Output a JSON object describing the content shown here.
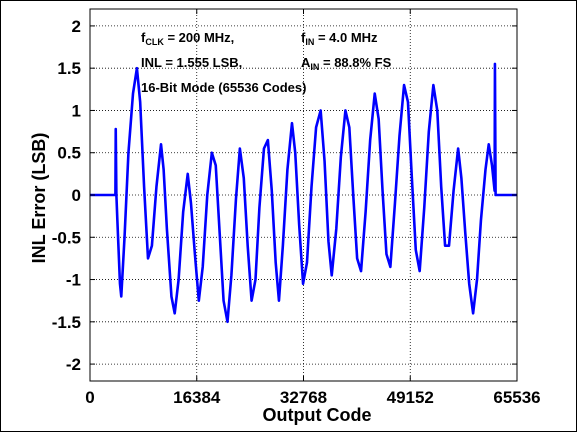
{
  "chart_data": {
    "type": "line",
    "xlabel": "Output Code",
    "ylabel": "INL Error (LSB)",
    "xlim": [
      0,
      65536
    ],
    "ylim": [
      -2.2,
      2.2
    ],
    "x_ticks": [
      0,
      16384,
      32768,
      49152,
      65536
    ],
    "x_tick_labels": [
      "0",
      "16384",
      "32768",
      "49152",
      "65536"
    ],
    "y_ticks": [
      2,
      1.5,
      1,
      0.5,
      0,
      -0.5,
      -1,
      -1.5,
      -2
    ],
    "y_tick_labels": [
      "2",
      "1.5",
      "1",
      "0.5",
      "0",
      "-0.5",
      "-1",
      "-1.5",
      "-2"
    ],
    "grid": true,
    "series_color": "#0000ff",
    "annotations": {
      "fclk": {
        "main": "f",
        "sub": "CLK",
        "rest": " = 200 MHz,"
      },
      "fin": {
        "main": "f",
        "sub": "IN",
        "rest": " = 4.0 MHz"
      },
      "inl": "INL = 1.555 LSB,",
      "ain": {
        "main": "A",
        "sub": "IN",
        "rest": " = 88.8% FS"
      },
      "mode": "16-Bit Mode (65536 Codes)"
    },
    "series": [
      {
        "points": [
          [
            0,
            0
          ],
          [
            3900,
            0
          ],
          [
            3950,
            0.78
          ],
          [
            4050,
            0
          ],
          [
            4200,
            -0.3
          ],
          [
            4600,
            -1.05
          ],
          [
            4800,
            -1.2
          ],
          [
            5300,
            -0.5
          ],
          [
            5900,
            0.5
          ],
          [
            6600,
            1.2
          ],
          [
            7200,
            1.5
          ],
          [
            7700,
            1.1
          ],
          [
            8300,
            0.1
          ],
          [
            8900,
            -0.75
          ],
          [
            9500,
            -0.6
          ],
          [
            10200,
            0.1
          ],
          [
            10900,
            0.6
          ],
          [
            11300,
            0.3
          ],
          [
            11800,
            -0.4
          ],
          [
            12500,
            -1.2
          ],
          [
            13000,
            -1.4
          ],
          [
            13600,
            -1.0
          ],
          [
            14300,
            -0.2
          ],
          [
            15000,
            0.25
          ],
          [
            15500,
            -0.1
          ],
          [
            16100,
            -0.7
          ],
          [
            16700,
            -1.25
          ],
          [
            17300,
            -0.85
          ],
          [
            18000,
            0.0
          ],
          [
            18700,
            0.5
          ],
          [
            19300,
            0.35
          ],
          [
            19900,
            -0.45
          ],
          [
            20500,
            -1.25
          ],
          [
            21100,
            -1.5
          ],
          [
            21700,
            -0.95
          ],
          [
            22400,
            -0.05
          ],
          [
            23000,
            0.55
          ],
          [
            23600,
            0.2
          ],
          [
            24200,
            -0.6
          ],
          [
            24800,
            -1.25
          ],
          [
            25400,
            -1.0
          ],
          [
            26000,
            -0.15
          ],
          [
            26700,
            0.55
          ],
          [
            27300,
            0.65
          ],
          [
            27900,
            0.05
          ],
          [
            28500,
            -0.8
          ],
          [
            29000,
            -1.25
          ],
          [
            29600,
            -0.6
          ],
          [
            30300,
            0.3
          ],
          [
            31000,
            0.85
          ],
          [
            31500,
            0.5
          ],
          [
            32100,
            -0.35
          ],
          [
            32700,
            -1.05
          ],
          [
            33300,
            -0.8
          ],
          [
            34000,
            0.1
          ],
          [
            34700,
            0.8
          ],
          [
            35400,
            1.0
          ],
          [
            36000,
            0.4
          ],
          [
            36600,
            -0.55
          ],
          [
            37100,
            -0.95
          ],
          [
            37800,
            -0.4
          ],
          [
            38500,
            0.45
          ],
          [
            39200,
            1.0
          ],
          [
            39800,
            0.8
          ],
          [
            40400,
            0.0
          ],
          [
            41000,
            -0.75
          ],
          [
            41600,
            -0.9
          ],
          [
            42300,
            -0.2
          ],
          [
            43000,
            0.65
          ],
          [
            43700,
            1.2
          ],
          [
            44300,
            0.9
          ],
          [
            44900,
            0.05
          ],
          [
            45500,
            -0.7
          ],
          [
            46100,
            -0.85
          ],
          [
            46800,
            -0.1
          ],
          [
            47500,
            0.7
          ],
          [
            48200,
            1.3
          ],
          [
            48800,
            1.1
          ],
          [
            49400,
            0.2
          ],
          [
            50000,
            -0.65
          ],
          [
            50600,
            -0.9
          ],
          [
            51300,
            -0.15
          ],
          [
            52000,
            0.75
          ],
          [
            52700,
            1.3
          ],
          [
            53300,
            1.0
          ],
          [
            53900,
            0.1
          ],
          [
            54500,
            -0.6
          ],
          [
            55100,
            -0.6
          ],
          [
            55800,
            0.05
          ],
          [
            56500,
            0.55
          ],
          [
            57000,
            0.2
          ],
          [
            57600,
            -0.45
          ],
          [
            58200,
            -1.05
          ],
          [
            58800,
            -1.4
          ],
          [
            59400,
            -1.0
          ],
          [
            60000,
            -0.3
          ],
          [
            60700,
            0.3
          ],
          [
            61200,
            0.6
          ],
          [
            61700,
            0.35
          ],
          [
            62100,
            0.05
          ],
          [
            62150,
            1.55
          ],
          [
            62250,
            0
          ],
          [
            65536,
            0
          ]
        ]
      }
    ]
  }
}
